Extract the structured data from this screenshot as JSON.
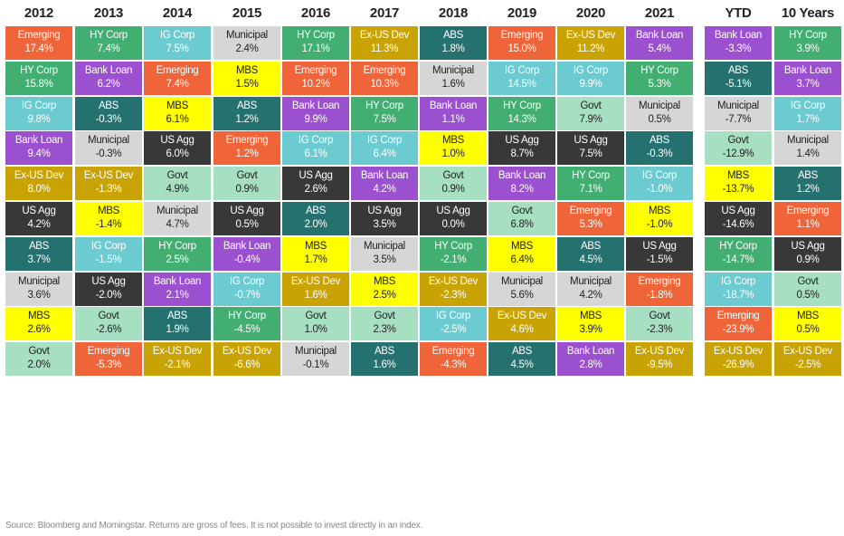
{
  "colors": {
    "Emerging": {
      "bg": "#f0643a",
      "fg": "#ffffff"
    },
    "HY Corp": {
      "bg": "#43ae72",
      "fg": "#ffffff"
    },
    "IG Corp": {
      "bg": "#6ccbd0",
      "fg": "#ffffff"
    },
    "Bank Loan": {
      "bg": "#9a50cf",
      "fg": "#ffffff"
    },
    "Ex-US Dev": {
      "bg": "#c9a304",
      "fg": "#ffffff"
    },
    "US Agg": {
      "bg": "#383838",
      "fg": "#ffffff"
    },
    "ABS": {
      "bg": "#24716f",
      "fg": "#ffffff"
    },
    "Municipal": {
      "bg": "#d6d6d6",
      "fg": "#222222"
    },
    "MBS": {
      "bg": "#ffff00",
      "fg": "#222222"
    },
    "Govt": {
      "bg": "#a6dfc2",
      "fg": "#222222"
    }
  },
  "chart_data": {
    "type": "table",
    "columns": [
      {
        "header": "2012",
        "cells": [
          {
            "label": "Emerging",
            "value": "17.4%"
          },
          {
            "label": "HY Corp",
            "value": "15.8%"
          },
          {
            "label": "IG Corp",
            "value": "9.8%"
          },
          {
            "label": "Bank Loan",
            "value": "9.4%"
          },
          {
            "label": "Ex-US Dev",
            "value": "8.0%"
          },
          {
            "label": "US Agg",
            "value": "4.2%"
          },
          {
            "label": "ABS",
            "value": "3.7%"
          },
          {
            "label": "Municipal",
            "value": "3.6%"
          },
          {
            "label": "MBS",
            "value": "2.6%"
          },
          {
            "label": "Govt",
            "value": "2.0%"
          }
        ]
      },
      {
        "header": "2013",
        "cells": [
          {
            "label": "HY Corp",
            "value": "7.4%"
          },
          {
            "label": "Bank Loan",
            "value": "6.2%"
          },
          {
            "label": "ABS",
            "value": "-0.3%"
          },
          {
            "label": "Municipal",
            "value": "-0.3%"
          },
          {
            "label": "Ex-US Dev",
            "value": "-1.3%"
          },
          {
            "label": "MBS",
            "value": "-1.4%"
          },
          {
            "label": "IG Corp",
            "value": "-1.5%"
          },
          {
            "label": "US Agg",
            "value": "-2.0%"
          },
          {
            "label": "Govt",
            "value": "-2.6%"
          },
          {
            "label": "Emerging",
            "value": "-5.3%"
          }
        ]
      },
      {
        "header": "2014",
        "cells": [
          {
            "label": "IG Corp",
            "value": "7.5%"
          },
          {
            "label": "Emerging",
            "value": "7.4%"
          },
          {
            "label": "MBS",
            "value": "6.1%"
          },
          {
            "label": "US Agg",
            "value": "6.0%"
          },
          {
            "label": "Govt",
            "value": "4.9%"
          },
          {
            "label": "Municipal",
            "value": "4.7%"
          },
          {
            "label": "HY Corp",
            "value": "2.5%"
          },
          {
            "label": "Bank Loan",
            "value": "2.1%"
          },
          {
            "label": "ABS",
            "value": "1.9%"
          },
          {
            "label": "Ex-US Dev",
            "value": "-2.1%"
          }
        ]
      },
      {
        "header": "2015",
        "cells": [
          {
            "label": "Municipal",
            "value": "2.4%"
          },
          {
            "label": "MBS",
            "value": "1.5%"
          },
          {
            "label": "ABS",
            "value": "1.2%"
          },
          {
            "label": "Emerging",
            "value": "1.2%"
          },
          {
            "label": "Govt",
            "value": "0.9%"
          },
          {
            "label": "US Agg",
            "value": "0.5%"
          },
          {
            "label": "Bank Loan",
            "value": "-0.4%"
          },
          {
            "label": "IG Corp",
            "value": "-0.7%"
          },
          {
            "label": "HY Corp",
            "value": "-4.5%"
          },
          {
            "label": "Ex-US Dev",
            "value": "-6.6%"
          }
        ]
      },
      {
        "header": "2016",
        "cells": [
          {
            "label": "HY Corp",
            "value": "17.1%"
          },
          {
            "label": "Emerging",
            "value": "10.2%"
          },
          {
            "label": "Bank Loan",
            "value": "9.9%"
          },
          {
            "label": "IG Corp",
            "value": "6.1%"
          },
          {
            "label": "US Agg",
            "value": "2.6%"
          },
          {
            "label": "ABS",
            "value": "2.0%"
          },
          {
            "label": "MBS",
            "value": "1.7%"
          },
          {
            "label": "Ex-US Dev",
            "value": "1.6%"
          },
          {
            "label": "Govt",
            "value": "1.0%"
          },
          {
            "label": "Municipal",
            "value": "-0.1%"
          }
        ]
      },
      {
        "header": "2017",
        "cells": [
          {
            "label": "Ex-US Dev",
            "value": "11.3%"
          },
          {
            "label": "Emerging",
            "value": "10.3%"
          },
          {
            "label": "HY Corp",
            "value": "7.5%"
          },
          {
            "label": "IG Corp",
            "value": "6.4%"
          },
          {
            "label": "Bank Loan",
            "value": "4.2%"
          },
          {
            "label": "US Agg",
            "value": "3.5%"
          },
          {
            "label": "Municipal",
            "value": "3.5%"
          },
          {
            "label": "MBS",
            "value": "2.5%"
          },
          {
            "label": "Govt",
            "value": "2.3%"
          },
          {
            "label": "ABS",
            "value": "1.6%"
          }
        ]
      },
      {
        "header": "2018",
        "cells": [
          {
            "label": "ABS",
            "value": "1.8%"
          },
          {
            "label": "Municipal",
            "value": "1.6%"
          },
          {
            "label": "Bank Loan",
            "value": "1.1%"
          },
          {
            "label": "MBS",
            "value": "1.0%"
          },
          {
            "label": "Govt",
            "value": "0.9%"
          },
          {
            "label": "US Agg",
            "value": "0.0%"
          },
          {
            "label": "HY Corp",
            "value": "-2.1%"
          },
          {
            "label": "Ex-US Dev",
            "value": "-2.3%"
          },
          {
            "label": "IG Corp",
            "value": "-2.5%"
          },
          {
            "label": "Emerging",
            "value": "-4.3%"
          }
        ]
      },
      {
        "header": "2019",
        "cells": [
          {
            "label": "Emerging",
            "value": "15.0%"
          },
          {
            "label": "IG Corp",
            "value": "14.5%"
          },
          {
            "label": "HY Corp",
            "value": "14.3%"
          },
          {
            "label": "US Agg",
            "value": "8.7%"
          },
          {
            "label": "Bank Loan",
            "value": "8.2%"
          },
          {
            "label": "Govt",
            "value": "6.8%"
          },
          {
            "label": "MBS",
            "value": "6.4%"
          },
          {
            "label": "Municipal",
            "value": "5.6%"
          },
          {
            "label": "Ex-US Dev",
            "value": "4.6%"
          },
          {
            "label": "ABS",
            "value": "4.5%"
          }
        ]
      },
      {
        "header": "2020",
        "cells": [
          {
            "label": "Ex-US Dev",
            "value": "11.2%"
          },
          {
            "label": "IG Corp",
            "value": "9.9%"
          },
          {
            "label": "Govt",
            "value": "7.9%"
          },
          {
            "label": "US Agg",
            "value": "7.5%"
          },
          {
            "label": "HY Corp",
            "value": "7.1%"
          },
          {
            "label": "Emerging",
            "value": "5.3%"
          },
          {
            "label": "ABS",
            "value": "4.5%"
          },
          {
            "label": "Municipal",
            "value": "4.2%"
          },
          {
            "label": "MBS",
            "value": "3.9%"
          },
          {
            "label": "Bank Loan",
            "value": "2.8%"
          }
        ]
      },
      {
        "header": "2021",
        "cells": [
          {
            "label": "Bank Loan",
            "value": "5.4%"
          },
          {
            "label": "HY Corp",
            "value": "5.3%"
          },
          {
            "label": "Municipal",
            "value": "0.5%"
          },
          {
            "label": "ABS",
            "value": "-0.3%"
          },
          {
            "label": "IG Corp",
            "value": "-1.0%"
          },
          {
            "label": "MBS",
            "value": "-1.0%"
          },
          {
            "label": "US Agg",
            "value": "-1.5%"
          },
          {
            "label": "Emerging",
            "value": "-1.8%"
          },
          {
            "label": "Govt",
            "value": "-2.3%"
          },
          {
            "label": "Ex-US Dev",
            "value": "-9.5%"
          }
        ]
      },
      {
        "header": "YTD",
        "cells": [
          {
            "label": "Bank Loan",
            "value": "-3.3%"
          },
          {
            "label": "ABS",
            "value": "-5.1%"
          },
          {
            "label": "Municipal",
            "value": "-7.7%"
          },
          {
            "label": "Govt",
            "value": "-12.9%"
          },
          {
            "label": "MBS",
            "value": "-13.7%"
          },
          {
            "label": "US Agg",
            "value": "-14.6%"
          },
          {
            "label": "HY Corp",
            "value": "-14.7%"
          },
          {
            "label": "IG Corp",
            "value": "-18.7%"
          },
          {
            "label": "Emerging",
            "value": "-23.9%"
          },
          {
            "label": "Ex-US Dev",
            "value": "-26.9%"
          }
        ]
      },
      {
        "header": "10 Years",
        "cells": [
          {
            "label": "HY Corp",
            "value": "3.9%"
          },
          {
            "label": "Bank Loan",
            "value": "3.7%"
          },
          {
            "label": "IG Corp",
            "value": "1.7%"
          },
          {
            "label": "Municipal",
            "value": "1.4%"
          },
          {
            "label": "ABS",
            "value": "1.2%"
          },
          {
            "label": "Emerging",
            "value": "1.1%"
          },
          {
            "label": "US Agg",
            "value": "0.9%"
          },
          {
            "label": "Govt",
            "value": "0.5%"
          },
          {
            "label": "MBS",
            "value": "0.5%"
          },
          {
            "label": "Ex-US Dev",
            "value": "-2.5%"
          }
        ]
      }
    ]
  },
  "footnote": "Source: Bloomberg and Morningstar. Returns are gross of fees. It is not possible to invest directly in an index."
}
